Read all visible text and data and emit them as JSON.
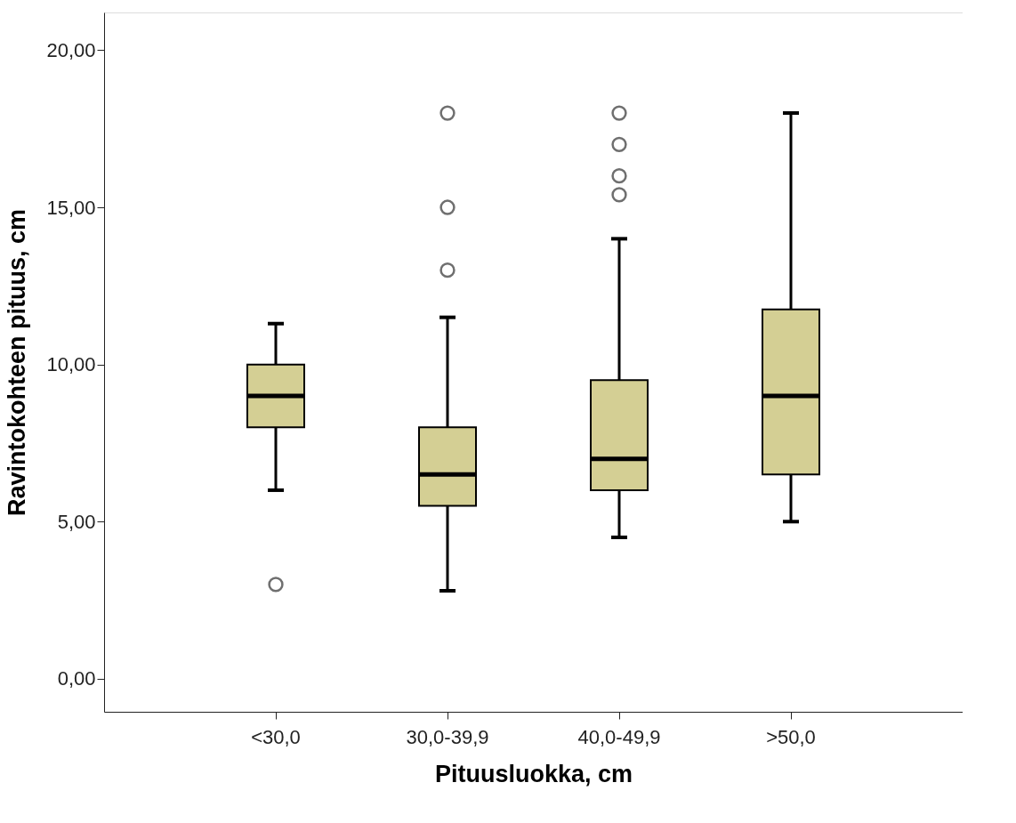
{
  "chart_data": {
    "type": "box",
    "xlabel": "Pituusluokka, cm",
    "ylabel": "Ravintokohteen pituus, cm",
    "categories": [
      "<30,0",
      "30,0-39,9",
      "40,0-49,9",
      ">50,0"
    ],
    "color": "#d4cf94",
    "boxes": [
      {
        "low": 6.0,
        "q1": 8.0,
        "median": 9.0,
        "q3": 10.0,
        "high": 11.3,
        "outliers": [
          3.0
        ]
      },
      {
        "low": 2.8,
        "q1": 5.5,
        "median": 6.5,
        "q3": 8.0,
        "high": 11.5,
        "outliers": [
          13.0,
          15.0,
          18.0
        ]
      },
      {
        "low": 4.5,
        "q1": 6.0,
        "median": 7.0,
        "q3": 9.5,
        "high": 14.0,
        "outliers": [
          15.4,
          16.0,
          17.0,
          18.0
        ]
      },
      {
        "low": 5.0,
        "q1": 6.5,
        "median": 9.0,
        "q3": 11.75,
        "high": 18.0
      }
    ],
    "ylim": [
      -1.05,
      21.2
    ],
    "yticks": [
      {
        "value": 0,
        "label": "0,00"
      },
      {
        "value": 5,
        "label": "5,00"
      },
      {
        "value": 10,
        "label": "10,00"
      },
      {
        "value": 15,
        "label": "15,00"
      },
      {
        "value": 20,
        "label": "20,00"
      }
    ],
    "grid": false,
    "legend": false
  }
}
